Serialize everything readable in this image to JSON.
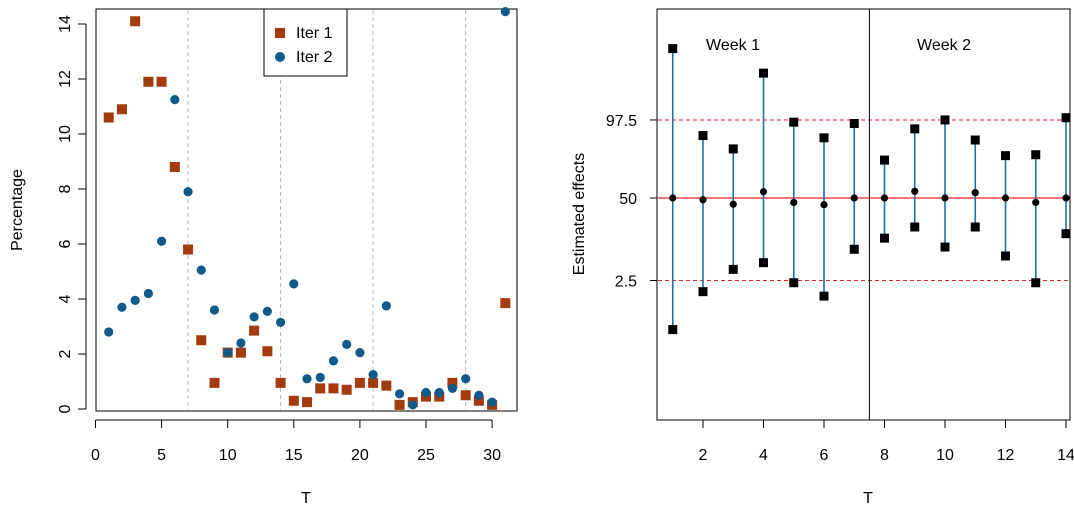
{
  "colors": {
    "iter1": "#a33b0c",
    "iter2": "#0e5a8a",
    "interval": "#1f6fa8",
    "refline": "#e8202a",
    "vline": "#b8b8b8",
    "marker": "#000000"
  },
  "chart_data": [
    {
      "type": "scatter",
      "xlabel": "T",
      "ylabel": "Percentage",
      "xlim": [
        0,
        32
      ],
      "ylim": [
        0,
        14.5
      ],
      "xticks": [
        "0",
        "5",
        "10",
        "15",
        "20",
        "25",
        "30"
      ],
      "yticks": [
        "0",
        "2",
        "4",
        "6",
        "8",
        "10",
        "12",
        "14"
      ],
      "vlines": [
        7,
        14,
        21,
        28
      ],
      "legend": {
        "position": "top-center",
        "entries": [
          "Iter 1",
          "Iter 2"
        ]
      },
      "series": [
        {
          "name": "Iter 1",
          "marker": "square",
          "x": [
            1,
            2,
            3,
            4,
            5,
            6,
            7,
            8,
            9,
            10,
            11,
            12,
            13,
            14,
            15,
            16,
            17,
            18,
            19,
            20,
            21,
            22,
            23,
            24,
            25,
            26,
            27,
            28,
            29,
            30,
            31
          ],
          "y": [
            10.6,
            10.9,
            14.1,
            11.9,
            11.9,
            8.8,
            5.8,
            2.5,
            0.95,
            2.05,
            2.05,
            2.85,
            2.1,
            0.95,
            0.3,
            0.25,
            0.75,
            0.75,
            0.7,
            0.95,
            0.95,
            0.85,
            0.15,
            0.25,
            0.45,
            0.45,
            0.95,
            0.5,
            0.3,
            0.15,
            3.85
          ]
        },
        {
          "name": "Iter 2",
          "marker": "circle",
          "x": [
            1,
            2,
            3,
            4,
            5,
            6,
            7,
            8,
            9,
            10,
            11,
            12,
            13,
            14,
            15,
            16,
            17,
            18,
            19,
            20,
            21,
            22,
            23,
            24,
            25,
            26,
            27,
            28,
            29,
            30,
            31
          ],
          "y": [
            2.8,
            3.7,
            3.95,
            4.2,
            6.1,
            11.25,
            7.9,
            5.05,
            3.6,
            2.05,
            2.4,
            3.35,
            3.55,
            3.15,
            4.55,
            1.1,
            1.15,
            1.75,
            2.35,
            2.05,
            1.25,
            3.75,
            0.55,
            0.15,
            0.6,
            0.6,
            0.75,
            1.1,
            0.5,
            0.25,
            14.45
          ]
        }
      ]
    },
    {
      "type": "interval",
      "xlabel": "T",
      "ylabel": "Estimated effects",
      "xlim": [
        0.5,
        14.5
      ],
      "xticks": [
        "2",
        "4",
        "6",
        "8",
        "10",
        "12",
        "14"
      ],
      "yticks": [
        "2.5",
        "50",
        "97.5"
      ],
      "reference_lines": {
        "upper": "97.5",
        "middle": "50",
        "lower": "2.5"
      },
      "divider_after": 7.5,
      "week_labels": [
        "Week 1",
        "Week 2"
      ],
      "x": [
        1,
        2,
        3,
        4,
        5,
        6,
        7,
        8,
        9,
        10,
        11,
        12,
        13,
        14
      ],
      "median": [
        0.0,
        -0.04,
        -0.14,
        0.14,
        -0.1,
        -0.15,
        0.0,
        0.0,
        0.15,
        0.0,
        0.12,
        0.0,
        -0.1,
        0.0
      ],
      "lower": [
        -2.95,
        -2.1,
        -1.6,
        -1.45,
        -1.9,
        -2.2,
        -1.15,
        -0.9,
        -0.65,
        -1.1,
        -0.65,
        -1.3,
        -1.9,
        -0.8
      ],
      "upper": [
        3.35,
        1.4,
        1.1,
        2.8,
        1.7,
        1.35,
        1.67,
        0.85,
        1.55,
        1.75,
        1.3,
        0.95,
        0.97,
        1.8
      ],
      "reference_values": {
        "upper": 1.75,
        "middle": 0.0,
        "lower": -1.85
      },
      "ylim": [
        -5.0,
        4.25
      ]
    }
  ]
}
